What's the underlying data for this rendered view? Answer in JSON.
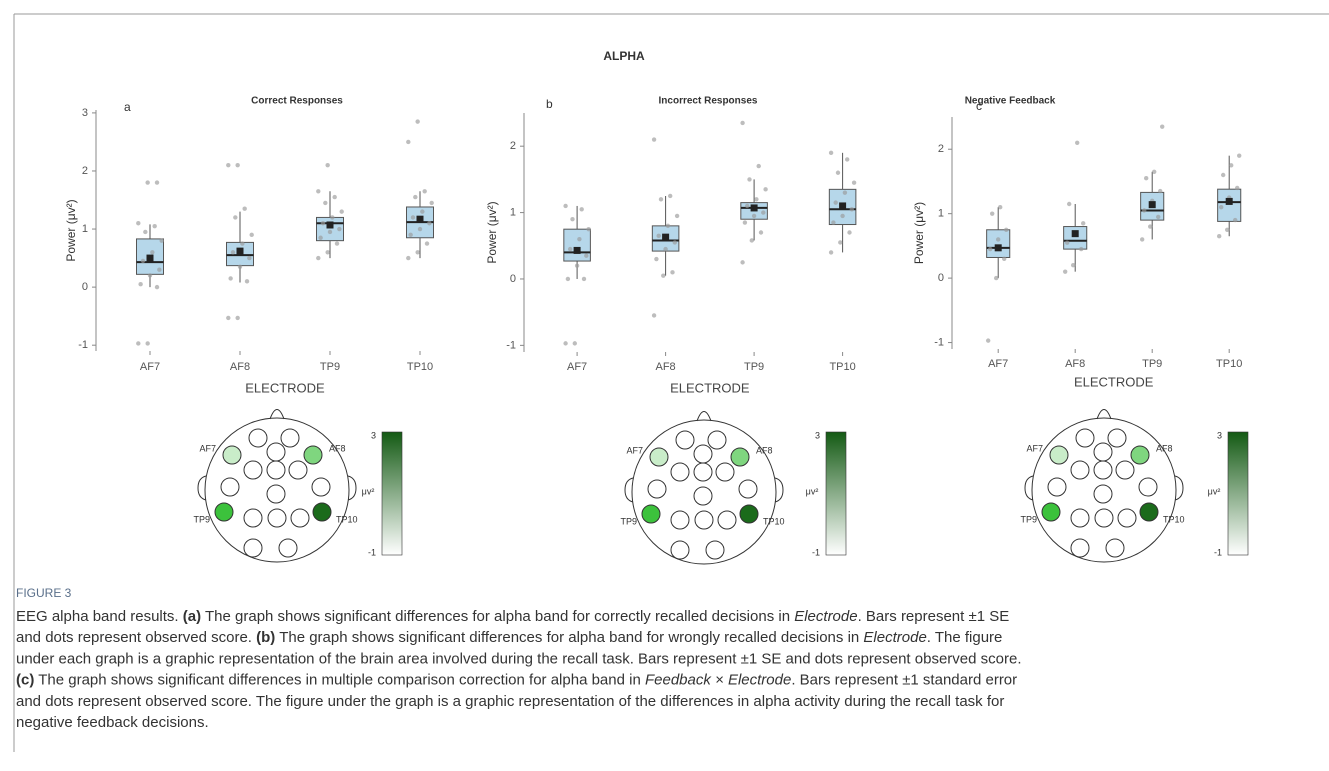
{
  "figure": {
    "title": "ALPHA",
    "label": "FIGURE 3",
    "caption": [
      [
        {
          "text": "EEG alpha band results. "
        },
        {
          "text": "(a)",
          "style": "bold"
        },
        {
          "text": " The graph shows significant differences for alpha band for correctly recalled decisions in "
        },
        {
          "text": "Electrode",
          "style": "italic"
        },
        {
          "text": ". Bars represent ±1 SE"
        }
      ],
      [
        {
          "text": "and dots represent observed score. "
        },
        {
          "text": "(b)",
          "style": "bold"
        },
        {
          "text": " The graph shows significant differences for alpha band for wrongly recalled decisions in "
        },
        {
          "text": "Electrode",
          "style": "italic"
        },
        {
          "text": ". The figure"
        }
      ],
      [
        {
          "text": "under each graph is a graphic representation of the brain area involved during the recall task. Bars represent ±1 SE and dots represent observed score."
        }
      ],
      [
        {
          "text": "(c)",
          "style": "bold"
        },
        {
          "text": " The graph shows significant differences in multiple comparison correction for alpha band in "
        },
        {
          "text": "Feedback × Electrode",
          "style": "italic"
        },
        {
          "text": ". Bars represent ±1 standard error"
        }
      ],
      [
        {
          "text": "and dots represent observed score. The figure under the graph is a graphic representation of the differences in alpha activity during the recall task for"
        }
      ],
      [
        {
          "text": "negative feedback decisions."
        }
      ]
    ]
  },
  "chart_data": [
    {
      "type": "box",
      "panel": "a",
      "title": "Correct Responses",
      "xlabel": "ELECTRODE",
      "ylabel": "Power (μv²)",
      "categories": [
        "AF7",
        "AF8",
        "TP9",
        "TP10"
      ],
      "ylim": [
        -1.1,
        3.05
      ],
      "yticks": [
        -1,
        0,
        1,
        2,
        3
      ],
      "box_color": "#a9d0e6",
      "point_color": "#9a9a9a",
      "boxes": [
        {
          "q1": 0.22,
          "median": 0.43,
          "q3": 0.83,
          "whisker_low": 0.0,
          "whisker_high": 1.08,
          "mean": 0.5,
          "points": [
            -0.97,
            -0.97,
            0.0,
            0.05,
            0.2,
            0.3,
            0.45,
            0.6,
            0.8,
            0.95,
            1.05,
            1.1,
            1.8,
            1.8
          ]
        },
        {
          "q1": 0.37,
          "median": 0.55,
          "q3": 0.77,
          "whisker_low": 0.08,
          "whisker_high": 1.3,
          "mean": 0.62,
          "points": [
            -0.53,
            -0.53,
            0.1,
            0.15,
            0.35,
            0.5,
            0.6,
            0.75,
            0.9,
            1.2,
            1.35,
            2.1,
            2.1
          ]
        },
        {
          "q1": 0.8,
          "median": 1.1,
          "q3": 1.2,
          "whisker_low": 0.5,
          "whisker_high": 1.65,
          "mean": 1.07,
          "points": [
            0.5,
            0.6,
            0.75,
            0.85,
            0.95,
            1.0,
            1.1,
            1.2,
            1.3,
            1.45,
            1.55,
            1.65,
            2.1
          ]
        },
        {
          "q1": 0.85,
          "median": 1.12,
          "q3": 1.38,
          "whisker_low": 0.5,
          "whisker_high": 1.65,
          "mean": 1.17,
          "points": [
            0.5,
            0.6,
            0.75,
            0.9,
            1.0,
            1.1,
            1.2,
            1.3,
            1.45,
            1.55,
            1.65,
            2.5,
            2.85
          ]
        }
      ],
      "headmap": {
        "electrodes": [
          "AF7",
          "AF8",
          "TP9",
          "TP10"
        ],
        "colors": [
          "#c9edc9",
          "#7fd67f",
          "#3cc23c",
          "#1b6b1b"
        ]
      },
      "colorbar": {
        "max": 3,
        "min": -1,
        "label": "μv²",
        "colors": [
          "#145a14",
          "#ffffff"
        ]
      }
    },
    {
      "type": "box",
      "panel": "b",
      "title": "Incorrect Responses",
      "xlabel": "ELECTRODE",
      "ylabel": "Power (μv²)",
      "categories": [
        "AF7",
        "AF8",
        "TP9",
        "TP10"
      ],
      "ylim": [
        -1.1,
        2.5
      ],
      "yticks": [
        -1,
        0,
        1,
        2
      ],
      "box_color": "#a9d0e6",
      "point_color": "#9a9a9a",
      "boxes": [
        {
          "q1": 0.27,
          "median": 0.4,
          "q3": 0.75,
          "whisker_low": 0.0,
          "whisker_high": 1.1,
          "mean": 0.43,
          "points": [
            -0.97,
            -0.97,
            0.0,
            0.0,
            0.2,
            0.35,
            0.45,
            0.6,
            0.75,
            0.9,
            1.05,
            1.1
          ]
        },
        {
          "q1": 0.42,
          "median": 0.58,
          "q3": 0.8,
          "whisker_low": 0.05,
          "whisker_high": 1.25,
          "mean": 0.63,
          "points": [
            -0.55,
            0.05,
            0.1,
            0.3,
            0.45,
            0.55,
            0.65,
            0.8,
            0.95,
            1.2,
            1.25,
            2.1
          ]
        },
        {
          "q1": 0.9,
          "median": 1.07,
          "q3": 1.15,
          "whisker_low": 0.58,
          "whisker_high": 1.5,
          "mean": 1.07,
          "points": [
            0.25,
            0.58,
            0.7,
            0.85,
            0.95,
            1.0,
            1.1,
            1.2,
            1.35,
            1.5,
            1.7,
            2.35
          ]
        },
        {
          "q1": 0.82,
          "median": 1.05,
          "q3": 1.35,
          "whisker_low": 0.4,
          "whisker_high": 1.9,
          "mean": 1.1,
          "points": [
            0.4,
            0.55,
            0.7,
            0.85,
            0.95,
            1.05,
            1.15,
            1.3,
            1.45,
            1.6,
            1.8,
            1.9
          ]
        }
      ],
      "headmap": {
        "electrodes": [
          "AF7",
          "AF8",
          "TP9",
          "TP10"
        ],
        "colors": [
          "#c9edc9",
          "#7fd67f",
          "#3cc23c",
          "#1b6b1b"
        ]
      },
      "colorbar": {
        "max": 3,
        "min": -1,
        "label": "μv²",
        "colors": [
          "#145a14",
          "#ffffff"
        ]
      }
    },
    {
      "type": "box",
      "panel": "c",
      "title": "Negative Feedback",
      "xlabel": "ELECTRODE",
      "ylabel": "Power (μv²)",
      "categories": [
        "AF7",
        "AF8",
        "TP9",
        "TP10"
      ],
      "ylim": [
        -1.1,
        2.5
      ],
      "yticks": [
        -1,
        0,
        1,
        2
      ],
      "box_color": "#a9d0e6",
      "point_color": "#9a9a9a",
      "boxes": [
        {
          "q1": 0.32,
          "median": 0.47,
          "q3": 0.75,
          "whisker_low": 0.0,
          "whisker_high": 1.1,
          "mean": 0.47,
          "points": [
            -0.97,
            0.0,
            0.3,
            0.45,
            0.6,
            0.75,
            1.0,
            1.1
          ]
        },
        {
          "q1": 0.45,
          "median": 0.58,
          "q3": 0.8,
          "whisker_low": 0.1,
          "whisker_high": 1.15,
          "mean": 0.69,
          "points": [
            0.1,
            0.2,
            0.45,
            0.55,
            0.7,
            0.85,
            1.15,
            2.1
          ]
        },
        {
          "q1": 0.9,
          "median": 1.05,
          "q3": 1.33,
          "whisker_low": 0.6,
          "whisker_high": 1.65,
          "mean": 1.14,
          "points": [
            0.6,
            0.8,
            0.95,
            1.05,
            1.2,
            1.35,
            1.55,
            1.65,
            2.35
          ]
        },
        {
          "q1": 0.88,
          "median": 1.18,
          "q3": 1.38,
          "whisker_low": 0.65,
          "whisker_high": 1.9,
          "mean": 1.19,
          "points": [
            0.65,
            0.75,
            0.9,
            1.1,
            1.25,
            1.4,
            1.6,
            1.75,
            1.9
          ]
        }
      ],
      "headmap": {
        "electrodes": [
          "AF7",
          "AF8",
          "TP9",
          "TP10"
        ],
        "colors": [
          "#c9edc9",
          "#7fd67f",
          "#3cc23c",
          "#1b6b1b"
        ]
      },
      "colorbar": {
        "max": 3,
        "min": -1,
        "label": "μv²",
        "colors": [
          "#145a14",
          "#ffffff"
        ]
      }
    }
  ]
}
